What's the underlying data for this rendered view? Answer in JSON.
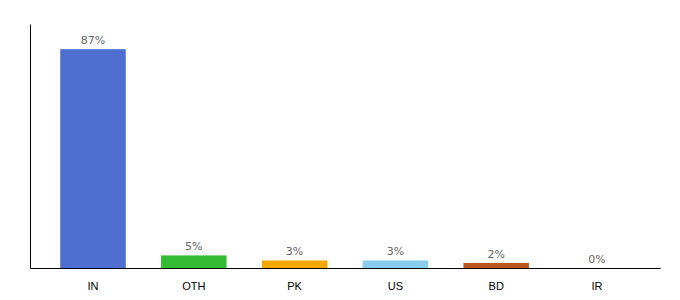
{
  "chart_data": {
    "type": "bar",
    "categories": [
      "IN",
      "OTH",
      "PK",
      "US",
      "BD",
      "IR"
    ],
    "values": [
      87,
      5,
      3,
      3,
      2,
      0
    ],
    "value_labels": [
      "87%",
      "5%",
      "3%",
      "3%",
      "2%",
      "0%"
    ],
    "colors": [
      "#4f6fd0",
      "#33bb33",
      "#f5a800",
      "#88ccee",
      "#b85820",
      "#4f6fd0"
    ],
    "ylim": [
      0,
      97
    ],
    "data_labels": true,
    "tick_labels": "x",
    "grid": false
  }
}
